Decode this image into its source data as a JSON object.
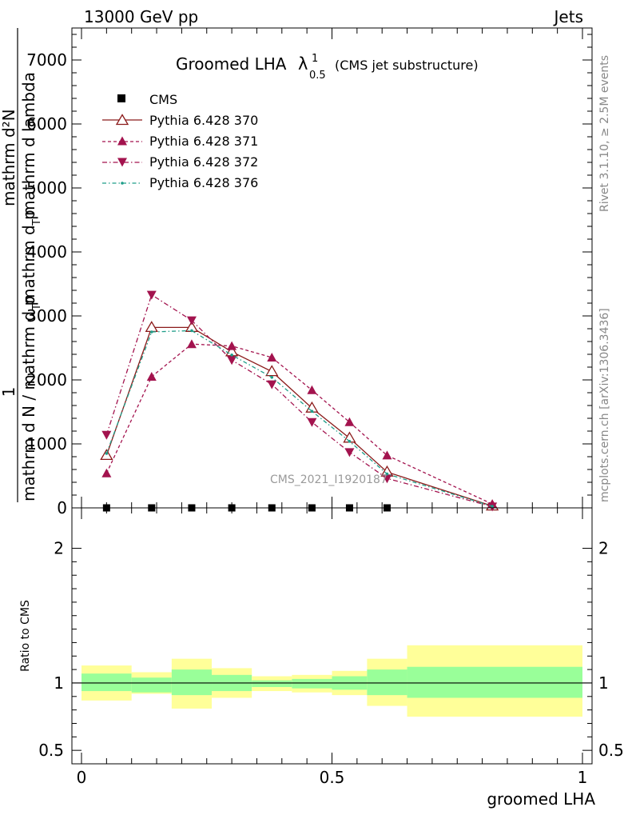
{
  "header": {
    "left": "13000 GeV pp",
    "right": "Jets"
  },
  "side_labels": {
    "rivet": "Rivet 3.1.10, ≥ 2.5M events",
    "mcplots": "mcplots.cern.ch [arXiv:1306.3436]"
  },
  "chart_data": {
    "type": "line",
    "title": {
      "main": "Groomed LHA",
      "lambda": "λ",
      "sup": "1",
      "sub": "0.5",
      "suffix": "(CMS jet substructure)"
    },
    "watermark": "CMS_2021_I1920187",
    "ylabel": {
      "one": "1",
      "denominator": "mathrm d N / mathrm d p",
      "denominator_sub": "T",
      "numerator": "mathrm d²N",
      "rest": "mathrm d p",
      "rest_sub": "T",
      "rest2": "mathrm d lambda"
    },
    "xlabel": "groomed LHA",
    "ratio_ylabel": "Ratio to CMS",
    "xlim": [
      0,
      1
    ],
    "ylim": [
      0,
      7500
    ],
    "y_ticks": [
      "0",
      "1000",
      "2000",
      "3000",
      "4000",
      "5000",
      "6000",
      "7000"
    ],
    "y_tick_values": [
      0,
      1000,
      2000,
      3000,
      4000,
      5000,
      6000,
      7000
    ],
    "x_ticks": [
      "0",
      "0.5",
      "1"
    ],
    "x_tick_values": [
      0,
      0.5,
      1
    ],
    "ratio_ylim": [
      0.4,
      2.3
    ],
    "ratio_ticks": [
      "0.5",
      "1",
      "2"
    ],
    "ratio_tick_values": [
      0.5,
      1,
      2
    ],
    "bin_edges": [
      0,
      0.1,
      0.18,
      0.26,
      0.34,
      0.42,
      0.5,
      0.57,
      0.65,
      1.0
    ],
    "data_x": [
      0.05,
      0.14,
      0.22,
      0.3,
      0.38,
      0.46,
      0.535,
      0.61
    ],
    "series": [
      {
        "name": "CMS",
        "style": "cms",
        "color": "#000000",
        "x": [
          0.05,
          0.14,
          0.22,
          0.3,
          0.38,
          0.46,
          0.535,
          0.61
        ],
        "values": [
          0,
          0,
          0,
          0,
          0,
          0,
          0,
          0
        ]
      },
      {
        "name": "Pythia 6.428 370",
        "style": "solid-open-triangle",
        "color": "#8b1a1a",
        "x": [
          0.05,
          0.14,
          0.22,
          0.3,
          0.38,
          0.46,
          0.535,
          0.61,
          0.82
        ],
        "values": [
          820,
          2820,
          2820,
          2440,
          2130,
          1560,
          1090,
          560,
          30
        ]
      },
      {
        "name": "Pythia 6.428 371",
        "style": "dashed-triangle-up",
        "color": "#a3134e",
        "x": [
          0.05,
          0.14,
          0.22,
          0.3,
          0.38,
          0.46,
          0.535,
          0.61,
          0.82
        ],
        "values": [
          540,
          2050,
          2560,
          2530,
          2350,
          1840,
          1340,
          820,
          60
        ]
      },
      {
        "name": "Pythia 6.428 372",
        "style": "dashdot-triangle-down",
        "color": "#a3134e",
        "x": [
          0.05,
          0.14,
          0.22,
          0.3,
          0.38,
          0.46,
          0.535,
          0.61,
          0.82
        ],
        "values": [
          1140,
          3330,
          2930,
          2310,
          1930,
          1340,
          870,
          460,
          20
        ]
      },
      {
        "name": "Pythia 6.428 376",
        "style": "dashdot-dot",
        "color": "#1f9e89",
        "x": [
          0.05,
          0.14,
          0.22,
          0.3,
          0.38,
          0.46,
          0.535,
          0.61,
          0.82
        ],
        "values": [
          850,
          2750,
          2770,
          2390,
          2040,
          1510,
          1040,
          530,
          25
        ]
      }
    ],
    "ratio_bands": {
      "inner": [
        [
          0.94,
          1.07
        ],
        [
          0.93,
          1.04
        ],
        [
          0.91,
          1.1
        ],
        [
          0.94,
          1.06
        ],
        [
          0.97,
          1.02
        ],
        [
          0.96,
          1.03
        ],
        [
          0.95,
          1.05
        ],
        [
          0.91,
          1.1
        ],
        [
          0.89,
          1.12
        ]
      ],
      "outer": [
        [
          0.87,
          1.13
        ],
        [
          0.92,
          1.08
        ],
        [
          0.81,
          1.18
        ],
        [
          0.89,
          1.11
        ],
        [
          0.94,
          1.05
        ],
        [
          0.93,
          1.06
        ],
        [
          0.91,
          1.09
        ],
        [
          0.83,
          1.18
        ],
        [
          0.75,
          1.28
        ]
      ],
      "inner_color": "#99ff99",
      "outer_color": "#ffff99"
    }
  }
}
